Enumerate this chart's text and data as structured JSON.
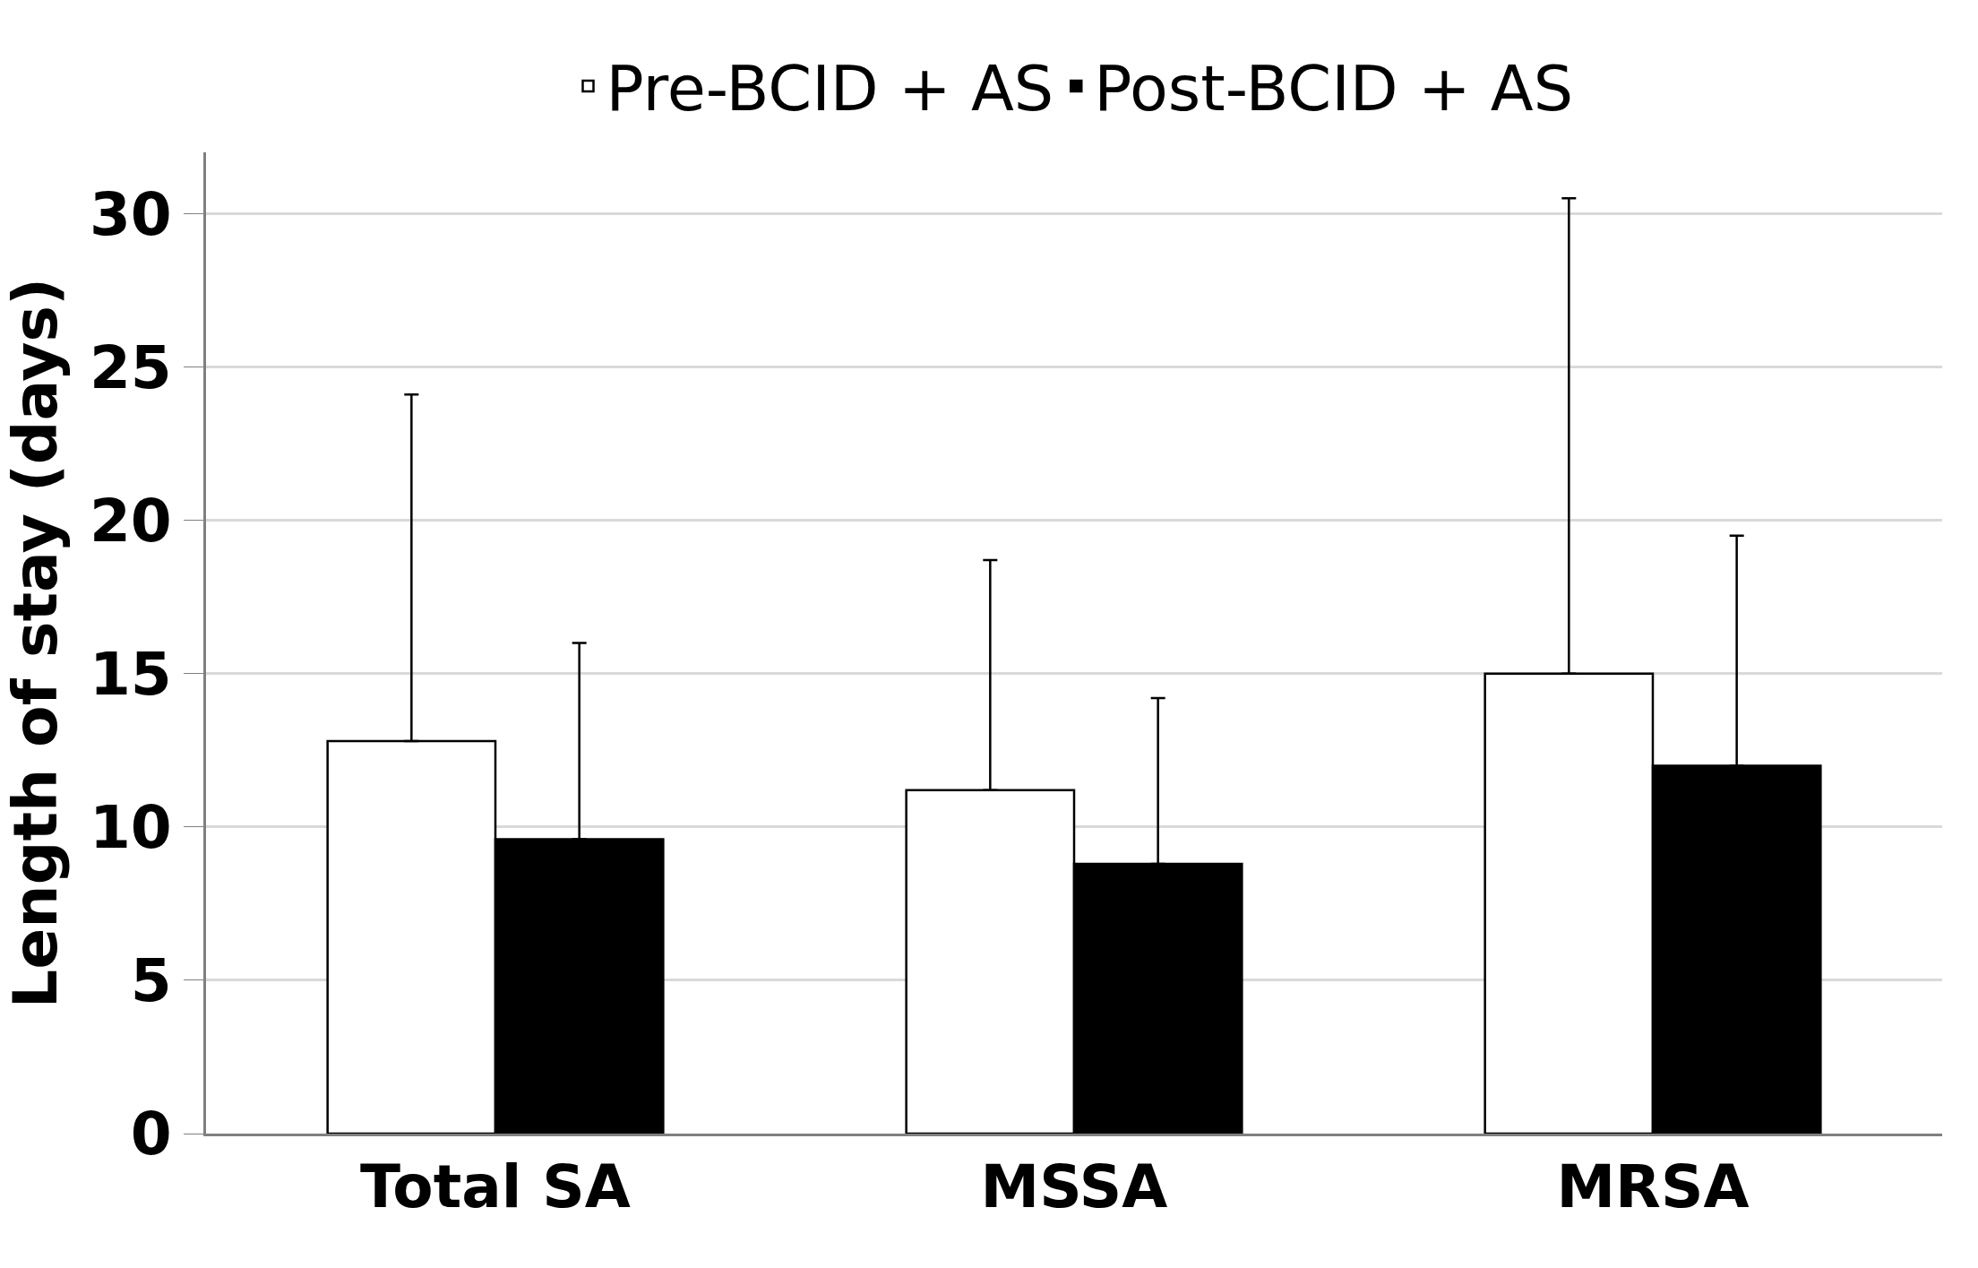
{
  "chart_data": {
    "type": "bar",
    "ylabel": "Length of stay (days)",
    "categories": [
      "Total SA",
      "MSSA",
      "MRSA"
    ],
    "series": [
      {
        "name": "Pre-BCID + AS",
        "color": "#ffffff",
        "values": [
          12.8,
          11.2,
          15.0
        ],
        "errors": [
          [
            12.8,
            24.1
          ],
          [
            11.2,
            18.7
          ],
          [
            15.0,
            30.5
          ]
        ]
      },
      {
        "name": "Post-BCID + AS",
        "color": "#000000",
        "values": [
          9.6,
          8.8,
          12.0
        ],
        "errors": [
          [
            9.6,
            16.0
          ],
          [
            8.8,
            14.2
          ],
          [
            12.0,
            19.5
          ]
        ]
      }
    ],
    "ylim": [
      0,
      32
    ],
    "yticks": [
      0,
      5,
      10,
      15,
      20,
      25,
      30
    ],
    "grid": "y",
    "legend": "top"
  }
}
